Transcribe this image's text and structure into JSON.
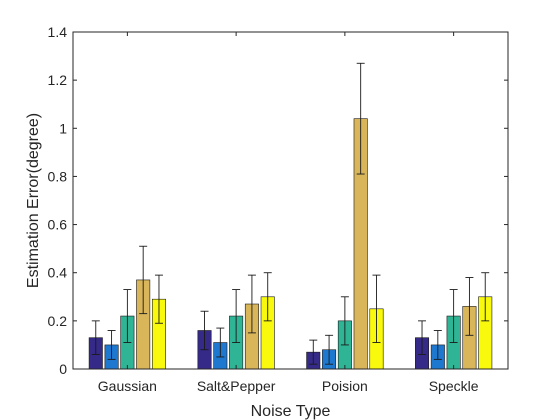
{
  "chart_data": {
    "type": "bar",
    "xlabel": "Noise Type",
    "ylabel": "Estimation Error(degree)",
    "ylim": [
      0,
      1.4
    ],
    "yticks": [
      0,
      0.2,
      0.4,
      0.6,
      0.8,
      1,
      1.2,
      1.4
    ],
    "ytick_labels": [
      "0",
      "0.2",
      "0.4",
      "0.6",
      "0.8",
      "1",
      "1.2",
      "1.4"
    ],
    "categories": [
      "Gaussian",
      "Salt&Pepper",
      "Poision",
      "Speckle"
    ],
    "grid": false,
    "legend": "none",
    "series": [
      {
        "color": "#352a87",
        "values": [
          0.13,
          0.16,
          0.07,
          0.13
        ],
        "errors": [
          0.07,
          0.08,
          0.05,
          0.07
        ]
      },
      {
        "color": "#1f78d0",
        "values": [
          0.1,
          0.11,
          0.08,
          0.1
        ],
        "errors": [
          0.06,
          0.06,
          0.06,
          0.06
        ]
      },
      {
        "color": "#2fb596",
        "values": [
          0.22,
          0.22,
          0.2,
          0.22
        ],
        "errors": [
          0.11,
          0.11,
          0.1,
          0.11
        ]
      },
      {
        "color": "#d9b65a",
        "values": [
          0.37,
          0.27,
          1.04,
          0.26
        ],
        "errors": [
          0.14,
          0.12,
          0.23,
          0.12
        ]
      },
      {
        "color": "#f9f90d",
        "values": [
          0.29,
          0.3,
          0.25,
          0.3
        ],
        "errors": [
          0.1,
          0.1,
          0.14,
          0.1
        ]
      }
    ]
  }
}
